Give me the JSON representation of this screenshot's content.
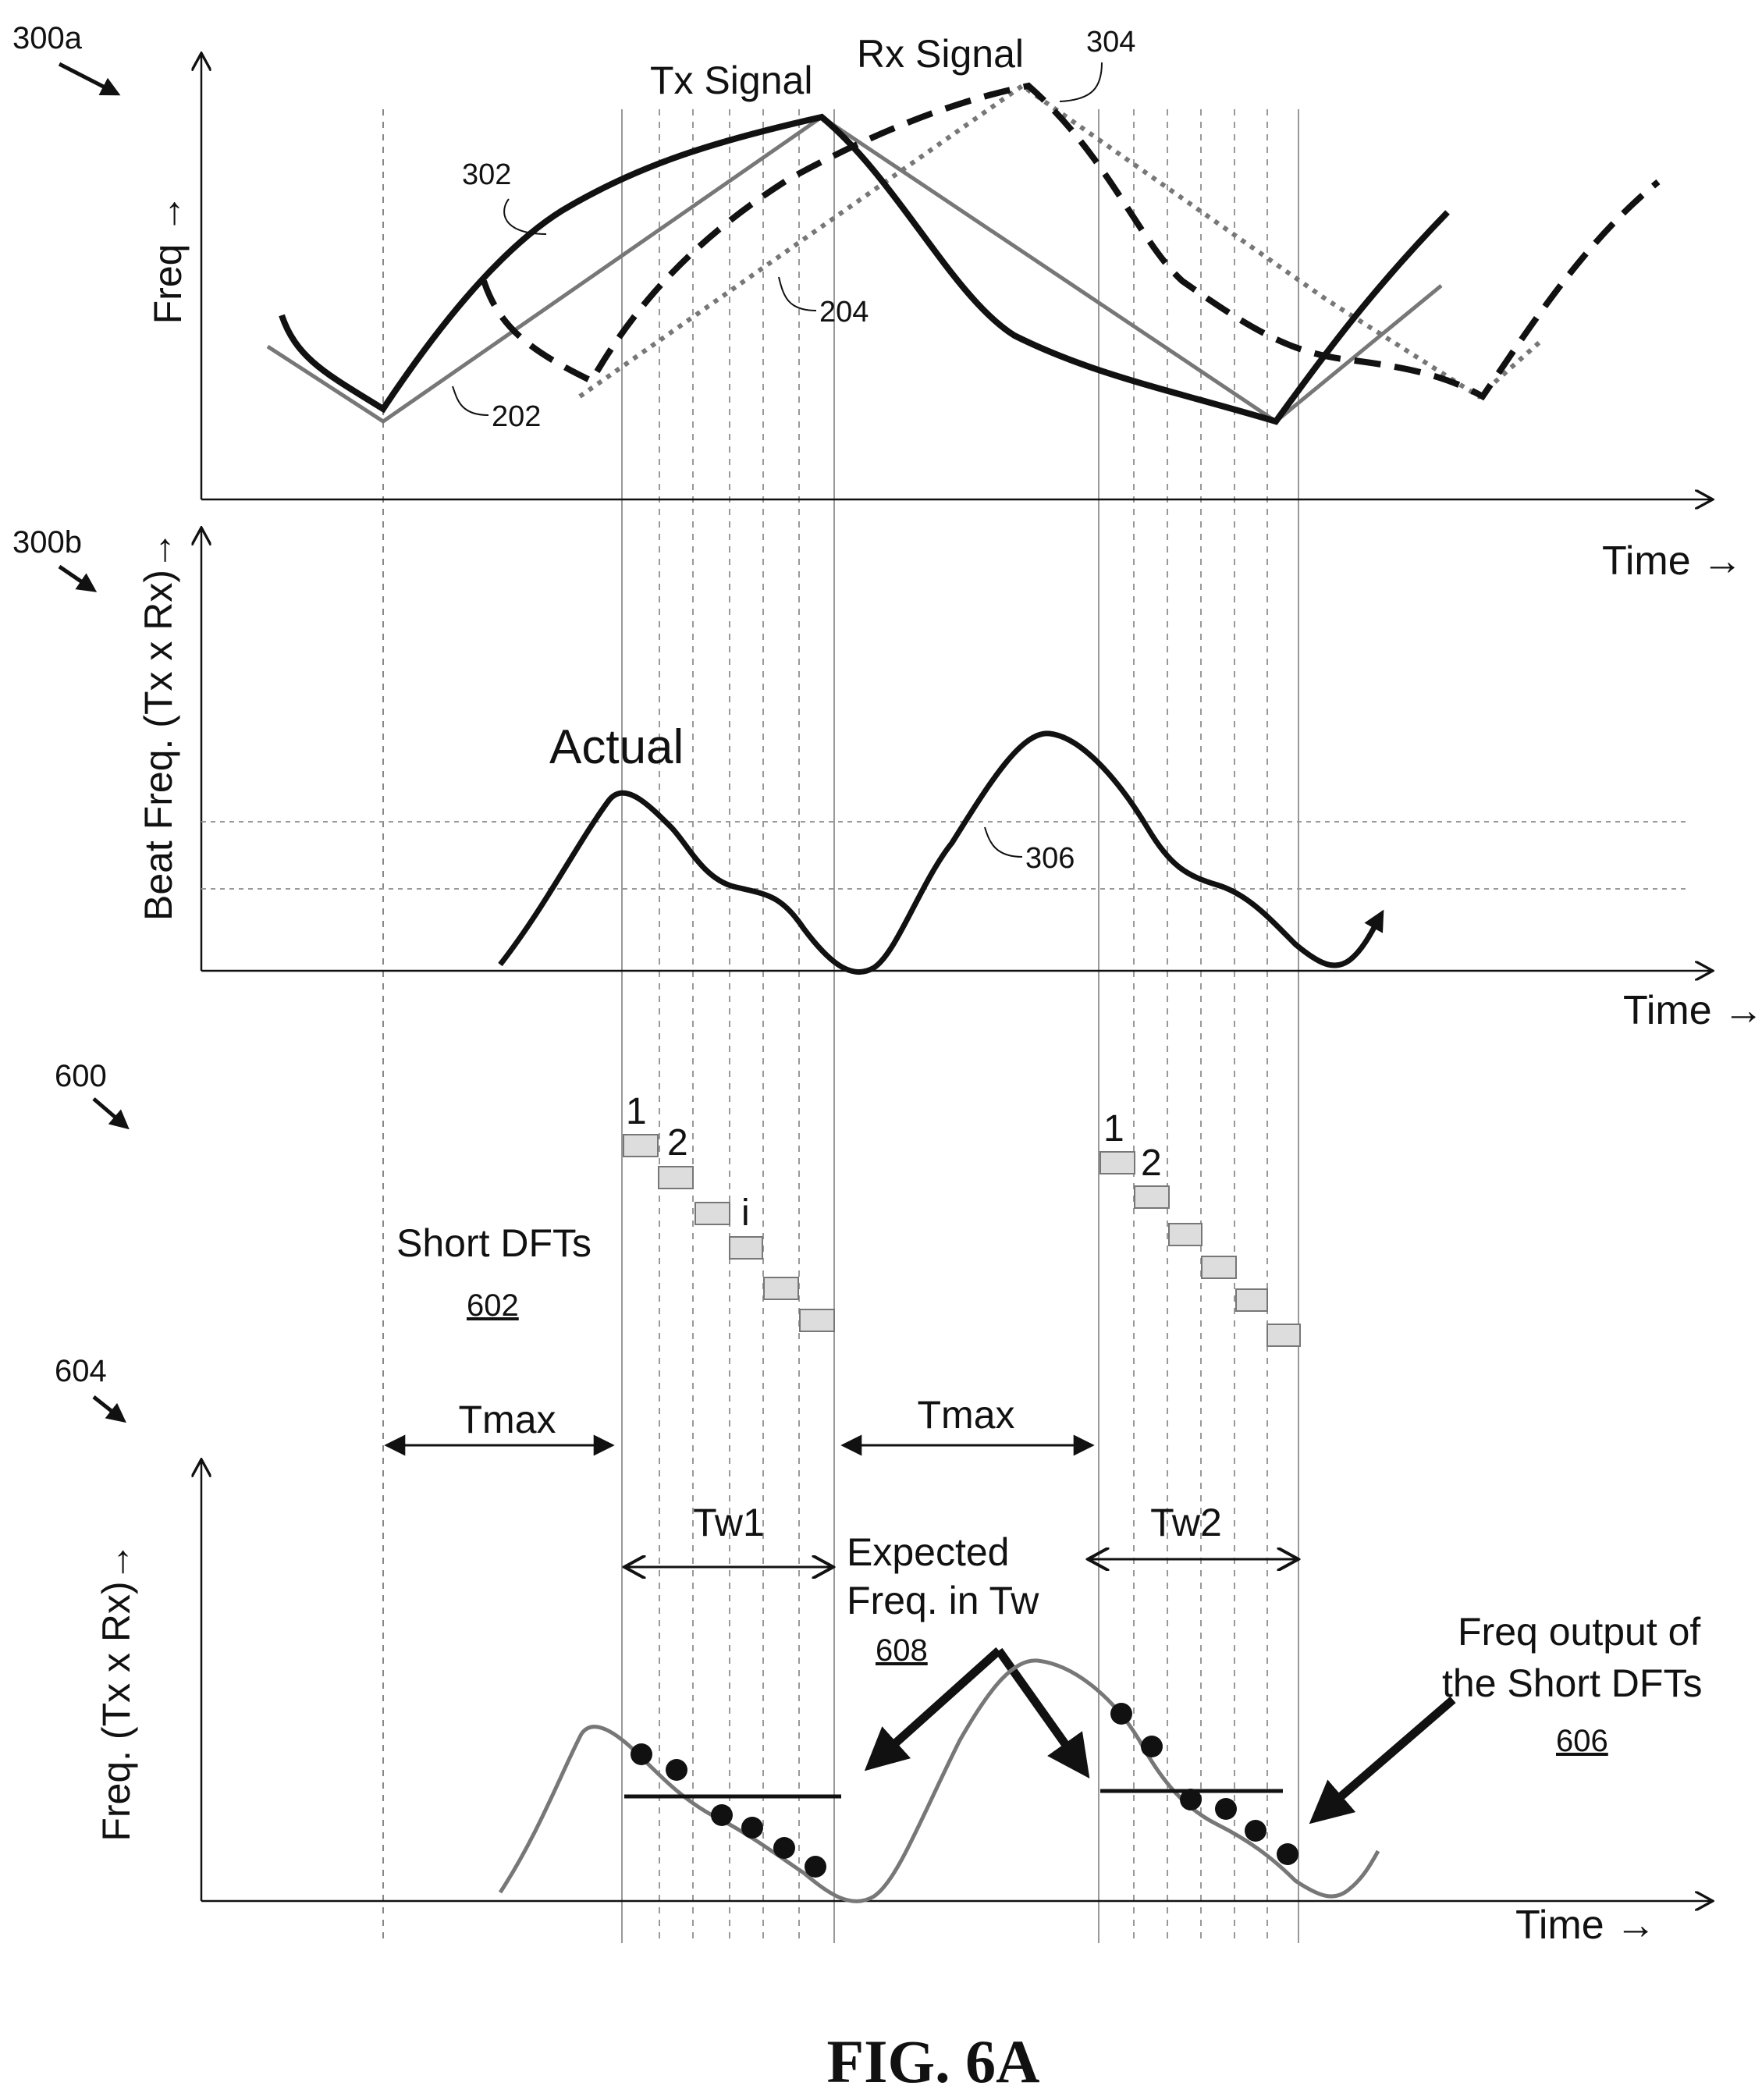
{
  "figure": {
    "caption": "FIG. 6A",
    "panel_a": {
      "ref": "300a",
      "y_axis_label": "Freq →",
      "x_axis_label": "Time →",
      "tx_label": "Tx Signal",
      "rx_label": "Rx Signal",
      "refs": {
        "tx_curve": "302",
        "rx_curve": "304",
        "tx_linear": "202",
        "rx_linear": "204"
      }
    },
    "panel_b": {
      "ref": "300b",
      "y_axis_label": "Beat Freq.  (Tx x Rx)→",
      "x_axis_label": "Time →",
      "actual_label": "Actual",
      "beat_ref": "306"
    },
    "panel_c": {
      "ref": "600",
      "short_dfts_label": "Short DFTs",
      "short_dfts_ref": "602",
      "block_labels": [
        "1",
        "2",
        "i"
      ],
      "block_labels_2": [
        "1",
        "2"
      ],
      "tmax_label": "Tmax",
      "tw1_label": "Tw1",
      "tw2_label": "Tw2",
      "expected_label_line1": "Expected",
      "expected_label_line2": "Freq. in Tw",
      "expected_ref": "608",
      "output_label_line1": "Freq output of",
      "output_label_line2": "the Short DFTs",
      "output_ref": "606"
    },
    "panel_d": {
      "ref": "604",
      "y_axis_label": "Freq.  (Tx x Rx)→",
      "x_axis_label": "Time →"
    }
  }
}
